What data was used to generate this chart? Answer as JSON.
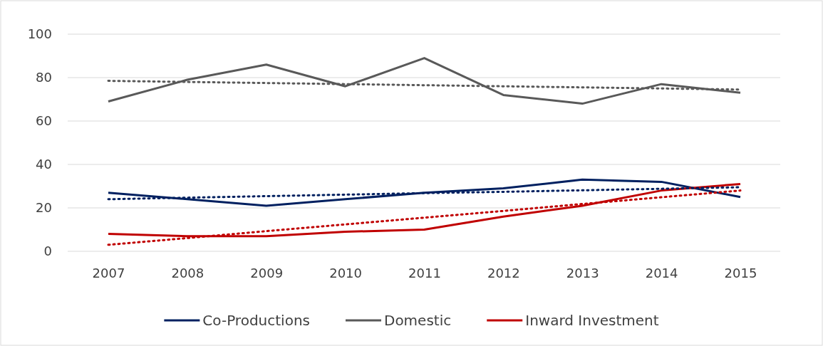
{
  "chart_data": {
    "type": "line",
    "categories": [
      "2007",
      "2008",
      "2009",
      "2010",
      "2011",
      "2012",
      "2013",
      "2014",
      "2015"
    ],
    "series": [
      {
        "name": "Co-Productions",
        "color": "#002060",
        "values": [
          27,
          24,
          21,
          24,
          27,
          29,
          33,
          32,
          25
        ]
      },
      {
        "name": "Domestic",
        "color": "#595959",
        "values": [
          69,
          79,
          86,
          76,
          89,
          72,
          68,
          77,
          73
        ]
      },
      {
        "name": "Inward Investment",
        "color": "#c00000",
        "values": [
          8,
          7,
          7,
          9,
          10,
          16,
          21,
          28,
          31
        ]
      },
      {
        "color": "#002060",
        "line_style": "dotted",
        "values": [
          24,
          24.7,
          25.4,
          26.1,
          26.8,
          27.4,
          28.1,
          28.8,
          29.5
        ]
      },
      {
        "color": "#595959",
        "line_style": "dotted",
        "values": [
          78.5,
          78,
          77.5,
          77,
          76.5,
          76,
          75.5,
          75,
          74.5
        ]
      },
      {
        "color": "#c00000",
        "line_style": "dotted",
        "values": [
          3,
          6.1,
          9.3,
          12.4,
          15.5,
          18.6,
          21.8,
          24.9,
          28
        ]
      }
    ],
    "ylim": [
      0,
      100
    ],
    "yticks": [
      0,
      20,
      40,
      60,
      80,
      100
    ],
    "grid": "y",
    "legend": "bottom",
    "line_style": "solid",
    "marker": "none"
  }
}
